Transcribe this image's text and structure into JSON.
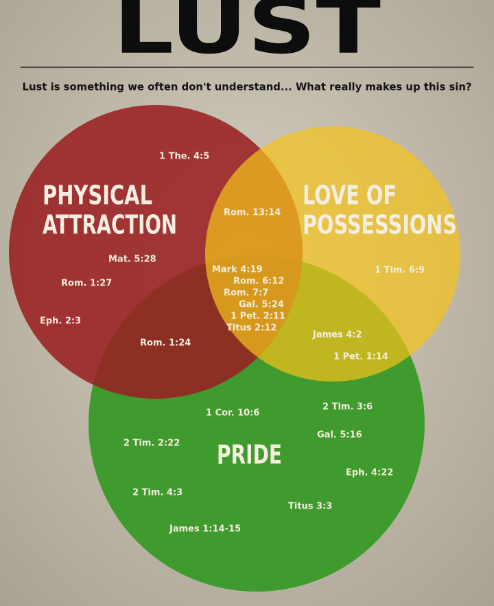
{
  "header": {
    "title": "LUST",
    "subtitle": "Lust is something we often don't understand... What really makes up this sin?"
  },
  "sets": [
    {
      "label_lines": [
        "PHYSICAL",
        "ATTRACTION"
      ]
    },
    {
      "label_lines": [
        "LOVE OF",
        "POSSESSIONS"
      ]
    },
    {
      "label_lines": [
        "PRIDE"
      ]
    }
  ],
  "regions": {
    "physical": [
      "1 The. 4:5",
      "Mat. 5:28",
      "Rom. 1:27",
      "Eph. 2:3"
    ],
    "physical_possessions": [
      "Rom. 13:14"
    ],
    "possessions": [
      "1 Tim. 6:9"
    ],
    "all": [
      "Mark 4:19",
      "Rom. 6:12",
      "Rom. 7:7",
      "Gal. 5:24",
      "1 Pet. 2:11",
      "Titus 2:12"
    ],
    "physical_pride": [
      "Rom. 1:24"
    ],
    "possessions_pride": [
      "James 4:2",
      "1 Pet. 1:14"
    ],
    "pride": [
      "1 Cor. 10:6",
      "2 Tim. 3:6",
      "2 Tim. 2:22",
      "Gal. 5:16",
      "Eph. 4:22",
      "2 Tim. 4:3",
      "Titus 3:3",
      "James 1:14-15"
    ]
  }
}
